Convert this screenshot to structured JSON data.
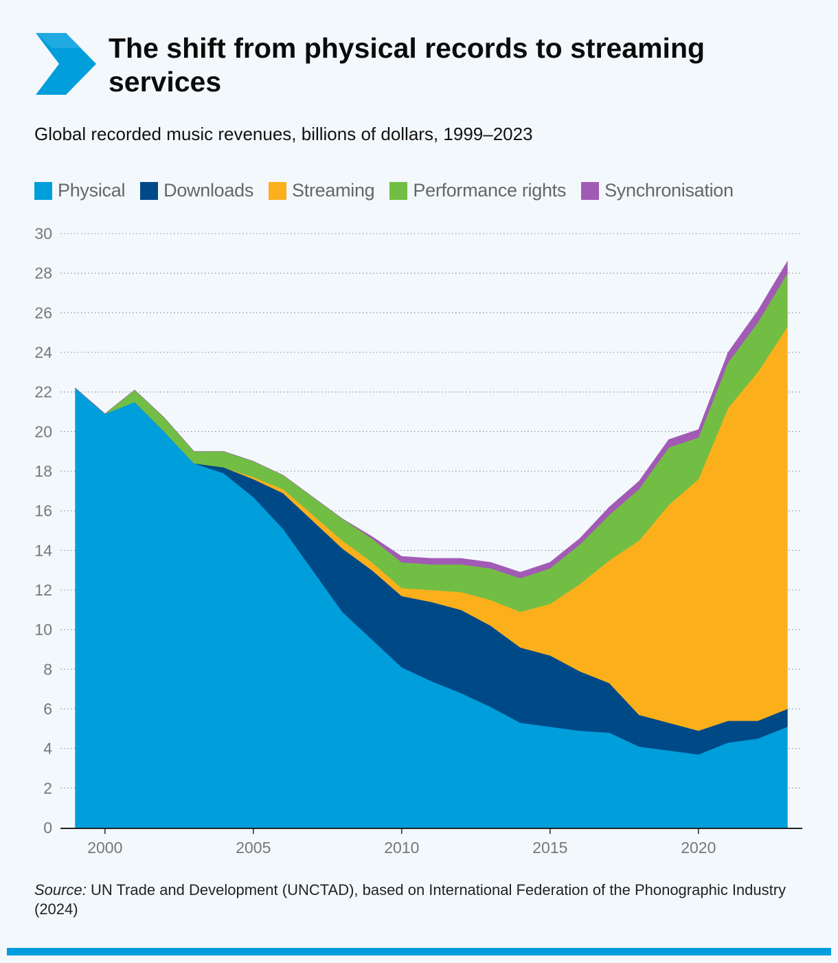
{
  "header": {
    "title": "The shift from physical records to streaming services",
    "subtitle": "Global recorded music revenues, billions of dollars, 1999–2023"
  },
  "source": {
    "label": "Source:",
    "text": " UN Trade and Development (UNCTAD), based on International Federation of the Phonographic Industry (2024)"
  },
  "colors": {
    "accent": "#009edb",
    "physical": "#009edb",
    "downloads": "#004987",
    "streaming": "#fbb01b",
    "performance": "#72be44",
    "synchronisation": "#a25bb5"
  },
  "legend": [
    {
      "label": "Physical",
      "color": "#009edb"
    },
    {
      "label": "Downloads",
      "color": "#004987"
    },
    {
      "label": "Streaming",
      "color": "#fbb01b"
    },
    {
      "label": "Performance rights",
      "color": "#72be44"
    },
    {
      "label": "Synchronisation",
      "color": "#a25bb5"
    }
  ],
  "chart_data": {
    "type": "area",
    "stacked": true,
    "title": "The shift from physical records to streaming services",
    "subtitle": "Global recorded music revenues, billions of dollars, 1999–2023",
    "x": [
      1999,
      2000,
      2001,
      2002,
      2003,
      2004,
      2005,
      2006,
      2007,
      2008,
      2009,
      2010,
      2011,
      2012,
      2013,
      2014,
      2015,
      2016,
      2017,
      2018,
      2019,
      2020,
      2021,
      2022,
      2023
    ],
    "series": [
      {
        "name": "Physical",
        "color": "#009edb",
        "values": [
          22.2,
          20.9,
          21.5,
          20.0,
          18.4,
          17.9,
          16.7,
          15.1,
          13.0,
          10.9,
          9.5,
          8.1,
          7.4,
          6.8,
          6.1,
          5.3,
          5.1,
          4.9,
          4.8,
          4.1,
          3.9,
          3.7,
          4.3,
          4.5,
          5.1
        ]
      },
      {
        "name": "Downloads",
        "color": "#004987",
        "values": [
          0,
          0,
          0,
          0,
          0,
          0.3,
          0.9,
          1.8,
          2.5,
          3.2,
          3.5,
          3.6,
          4.0,
          4.2,
          4.1,
          3.8,
          3.6,
          3.0,
          2.5,
          1.6,
          1.4,
          1.2,
          1.1,
          0.9,
          0.9
        ]
      },
      {
        "name": "Streaming",
        "color": "#fbb01b",
        "values": [
          0,
          0,
          0,
          0,
          0,
          0,
          0.1,
          0.2,
          0.3,
          0.4,
          0.4,
          0.4,
          0.6,
          0.9,
          1.3,
          1.8,
          2.6,
          4.4,
          6.2,
          8.8,
          11.0,
          12.7,
          15.8,
          17.6,
          19.3
        ]
      },
      {
        "name": "Performance rights",
        "color": "#72be44",
        "values": [
          0,
          0,
          0.6,
          0.7,
          0.6,
          0.8,
          0.8,
          0.7,
          0.9,
          1.1,
          1.2,
          1.3,
          1.3,
          1.4,
          1.6,
          1.7,
          1.8,
          2.0,
          2.3,
          2.6,
          2.9,
          2.1,
          2.3,
          2.5,
          2.7
        ]
      },
      {
        "name": "Synchronisation",
        "color": "#a25bb5",
        "values": [
          0,
          0,
          0,
          0,
          0,
          0,
          0,
          0,
          0,
          0,
          0.1,
          0.3,
          0.3,
          0.3,
          0.3,
          0.3,
          0.3,
          0.3,
          0.4,
          0.4,
          0.4,
          0.4,
          0.5,
          0.6,
          0.6
        ]
      }
    ],
    "y_ticks": [
      0,
      2,
      4,
      6,
      8,
      10,
      12,
      14,
      16,
      18,
      20,
      22,
      24,
      26,
      28,
      30
    ],
    "x_ticks": [
      2000,
      2005,
      2010,
      2015,
      2020
    ],
    "ylim": [
      0,
      30
    ],
    "xlim": [
      1998.5,
      2023.5
    ],
    "grid": true,
    "legend_position": "top-left"
  }
}
